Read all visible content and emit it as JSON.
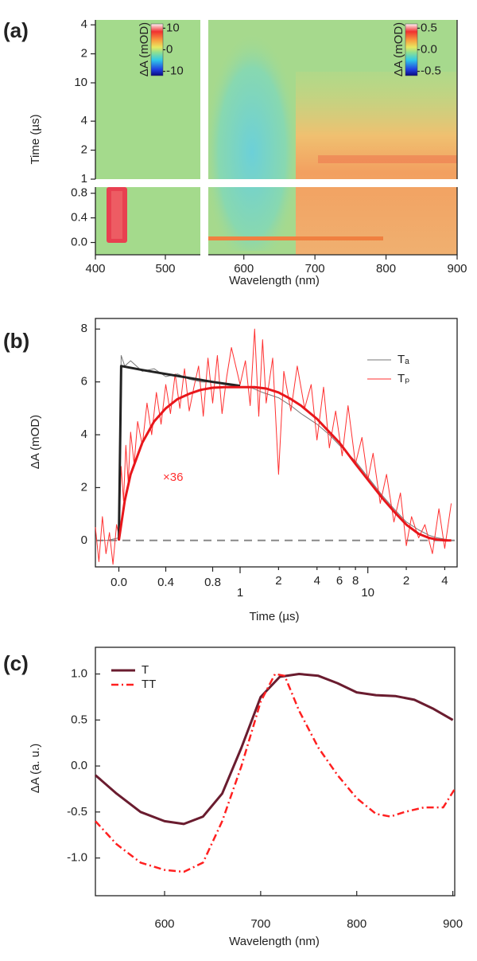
{
  "chart_data": [
    {
      "type": "heatmap",
      "panel_label": "(a)",
      "xlabel": "Wavelength (nm)",
      "ylabel": "Time (µs)",
      "xlim_left": [
        400,
        550
      ],
      "xlim_right": [
        550,
        900
      ],
      "xticks": [
        400,
        500,
        600,
        700,
        800,
        900
      ],
      "ylim_linear": [
        -0.2,
        0.9
      ],
      "yticks_linear": [
        {
          "value": 0,
          "label": "0.0"
        },
        0.4,
        0.8
      ],
      "ylim_log": [
        1,
        45
      ],
      "yticks_log": [
        1,
        2,
        4,
        10,
        {
          "value": 20,
          "label": "2"
        },
        {
          "value": 40,
          "label": "4"
        }
      ],
      "colorbars": [
        {
          "label": "ΔA (mOD)",
          "lim": [
            -12,
            12
          ],
          "ticks": [
            -10,
            0,
            10
          ]
        },
        {
          "label": "ΔA (mOD)",
          "lim": [
            -0.6,
            0.6
          ],
          "ticks": [
            -0.5,
            {
              "value": 0,
              "label": "0.0"
            },
            0.5
          ]
        }
      ]
    },
    {
      "type": "line",
      "panel_label": "(b)",
      "xlabel": "Time (µs)",
      "ylabel": "ΔA (mOD)",
      "annotation": "×36",
      "xlim_linear": [
        -0.2,
        1
      ],
      "xlim_log": [
        1,
        50
      ],
      "xticks_linear": [
        {
          "value": 0,
          "label": "0.0"
        },
        0.4,
        0.8
      ],
      "xticks_log": [
        1,
        2,
        4,
        6,
        8,
        10,
        {
          "value": 20,
          "label": "2"
        },
        {
          "value": 40,
          "label": "4"
        }
      ],
      "ylim": [
        -1,
        8.4
      ],
      "yticks": [
        0,
        2,
        4,
        6,
        8
      ],
      "legend": "upper right",
      "series": [
        {
          "name": "Tₐ",
          "color": "#777777",
          "width": 1,
          "x": [
            -0.2,
            -0.1,
            0,
            0.02,
            0.05,
            0.1,
            0.2,
            0.3,
            0.4,
            0.5,
            0.6,
            0.7,
            0.8,
            0.9,
            1.0,
            1.2,
            1.5,
            2,
            2.5,
            3,
            4,
            5,
            6,
            8,
            10,
            13,
            16,
            20,
            25,
            30,
            35,
            40,
            45
          ],
          "values": [
            0,
            0,
            0.1,
            7.0,
            6.6,
            6.8,
            6.4,
            6.5,
            6.2,
            6.3,
            6.1,
            6.0,
            6.0,
            5.9,
            5.8,
            5.8,
            5.6,
            5.4,
            5.1,
            4.8,
            4.4,
            4.0,
            3.6,
            3.0,
            2.4,
            1.7,
            1.2,
            0.7,
            0.4,
            0.2,
            0.1,
            0.05,
            0.0
          ]
        },
        {
          "name": "Tₚ",
          "color": "#ff3030",
          "width": 1,
          "x": [
            -0.2,
            -0.17,
            -0.14,
            -0.11,
            -0.08,
            -0.05,
            -0.02,
            0.0,
            0.02,
            0.04,
            0.06,
            0.08,
            0.1,
            0.13,
            0.16,
            0.2,
            0.24,
            0.28,
            0.32,
            0.36,
            0.4,
            0.44,
            0.48,
            0.52,
            0.56,
            0.6,
            0.64,
            0.68,
            0.72,
            0.76,
            0.8,
            0.84,
            0.88,
            0.92,
            0.96,
            1.0,
            1.1,
            1.2,
            1.3,
            1.4,
            1.5,
            1.6,
            1.8,
            2.0,
            2.2,
            2.5,
            2.8,
            3.2,
            3.6,
            4,
            4.5,
            5,
            5.6,
            6.3,
            7,
            8,
            9,
            10,
            11,
            12.5,
            14,
            16,
            18,
            20,
            22,
            25,
            28,
            32,
            36,
            40,
            45
          ],
          "values": [
            0.5,
            -0.8,
            0.9,
            -0.5,
            0.3,
            -0.9,
            0.6,
            0.2,
            2.8,
            1.5,
            3.6,
            2.2,
            4.1,
            2.9,
            4.5,
            3.6,
            5.2,
            4.0,
            5.6,
            4.4,
            5.9,
            4.8,
            6.3,
            5.0,
            6.5,
            4.9,
            5.8,
            6.6,
            4.7,
            6.9,
            5.2,
            7.0,
            4.8,
            6.2,
            7.3,
            5.9,
            6.8,
            5.1,
            8.0,
            4.7,
            7.6,
            5.2,
            6.9,
            2.5,
            6.4,
            4.9,
            6.6,
            5.0,
            5.9,
            3.8,
            5.8,
            3.5,
            4.9,
            3.2,
            5.1,
            2.9,
            3.9,
            2.3,
            3.3,
            1.4,
            2.5,
            0.7,
            1.8,
            -0.2,
            0.9,
            0.1,
            0.6,
            -0.5,
            1.2,
            -0.3,
            1.4
          ]
        },
        {
          "color": "#222222",
          "width": 3,
          "x": [
            0,
            0.02,
            0.2,
            0.4,
            0.6,
            0.8,
            1.0
          ],
          "values": [
            0,
            6.6,
            6.45,
            6.3,
            6.15,
            6.0,
            5.85
          ]
        },
        {
          "color": "#e8161b",
          "width": 3,
          "x": [
            0,
            0.05,
            0.1,
            0.2,
            0.3,
            0.4,
            0.5,
            0.6,
            0.7,
            0.8,
            0.9,
            1.0,
            1.3,
            1.6,
            2,
            2.5,
            3,
            4,
            5,
            6,
            8,
            10,
            13,
            16,
            20,
            25,
            30,
            35,
            40,
            45
          ],
          "values": [
            0,
            1.5,
            2.5,
            3.7,
            4.5,
            5.0,
            5.35,
            5.55,
            5.7,
            5.78,
            5.8,
            5.8,
            5.8,
            5.75,
            5.6,
            5.35,
            5.1,
            4.6,
            4.1,
            3.7,
            2.9,
            2.3,
            1.6,
            1.1,
            0.6,
            0.25,
            0.1,
            0.03,
            0.0,
            0.0
          ]
        }
      ]
    },
    {
      "type": "line",
      "panel_label": "(c)",
      "xlabel": "Wavelength (nm)",
      "ylabel": "ΔA (a. u.)",
      "xlim": [
        528,
        902
      ],
      "xticks": [
        600,
        700,
        800,
        900
      ],
      "ylim": [
        -1.41,
        1.29
      ],
      "yticks": [
        {
          "value": -1,
          "label": "-1.0"
        },
        -0.5,
        {
          "value": 0,
          "label": "0.0"
        },
        0.5,
        {
          "value": 1,
          "label": "1.0"
        }
      ],
      "legend": "upper left",
      "series": [
        {
          "name": "T",
          "color": "#6a1c2f",
          "width": 3,
          "x": [
            528,
            550,
            575,
            600,
            620,
            640,
            660,
            680,
            700,
            720,
            740,
            760,
            780,
            800,
            820,
            840,
            860,
            880,
            900
          ],
          "values": [
            -0.1,
            -0.3,
            -0.5,
            -0.6,
            -0.63,
            -0.55,
            -0.3,
            0.2,
            0.75,
            0.97,
            1.0,
            0.98,
            0.9,
            0.8,
            0.77,
            0.76,
            0.72,
            0.62,
            0.5
          ]
        },
        {
          "name": "TT",
          "color": "#ff2020",
          "width": 2.5,
          "dash": "9 4 2 4",
          "x": [
            528,
            550,
            575,
            600,
            620,
            640,
            660,
            680,
            700,
            715,
            725,
            740,
            760,
            780,
            800,
            820,
            835,
            850,
            870,
            890,
            902
          ],
          "values": [
            -0.6,
            -0.85,
            -1.05,
            -1.13,
            -1.15,
            -1.05,
            -0.6,
            0.0,
            0.7,
            1.0,
            0.98,
            0.6,
            0.2,
            -0.1,
            -0.35,
            -0.52,
            -0.55,
            -0.5,
            -0.45,
            -0.45,
            -0.25
          ]
        }
      ]
    }
  ]
}
